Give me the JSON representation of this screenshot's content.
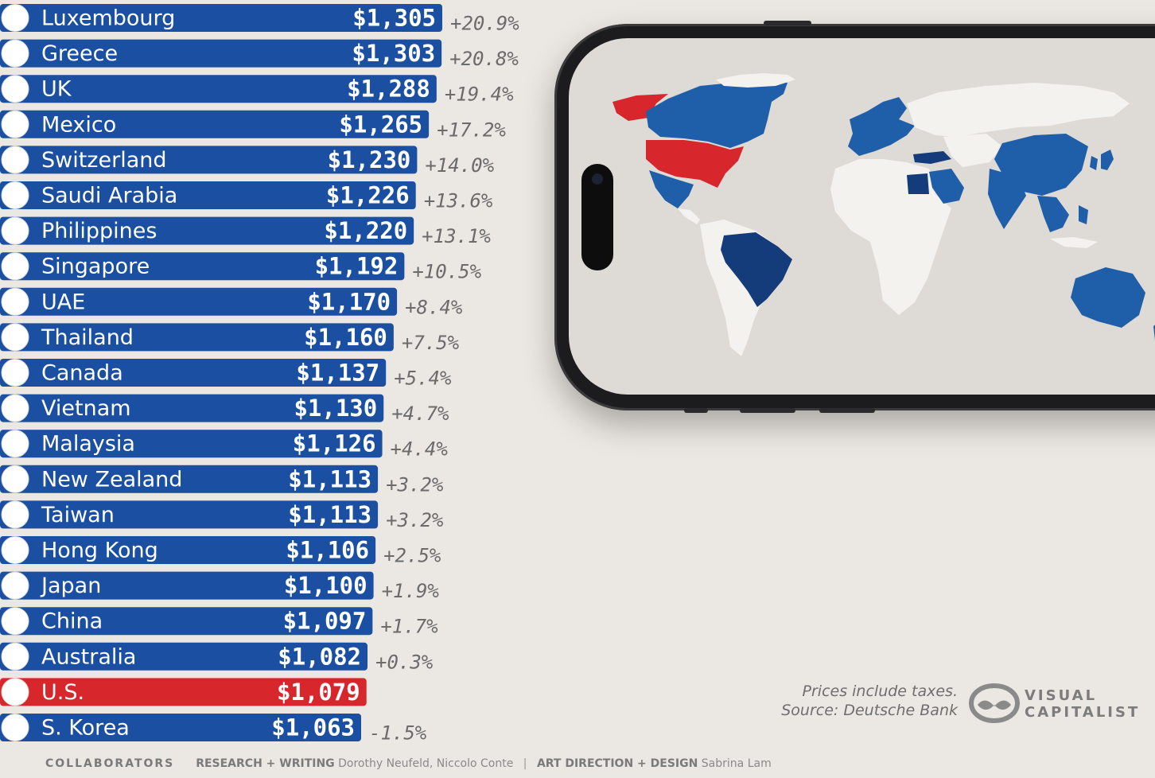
{
  "colors": {
    "bar": "#1a4fa2",
    "us_bar": "#d7262c",
    "background": "#ebe7e2",
    "map_land": "#f4f2ef",
    "map_blue": "#1f5ea8",
    "map_dark": "#143c7a",
    "map_red": "#d7262c"
  },
  "chart_data": {
    "type": "bar",
    "orientation": "horizontal",
    "unit": "USD",
    "categories": [
      "Luxembourg",
      "Greece",
      "UK",
      "Mexico",
      "Switzerland",
      "Saudi Arabia",
      "Philippines",
      "Singapore",
      "UAE",
      "Thailand",
      "Canada",
      "Vietnam",
      "Malaysia",
      "New Zealand",
      "Taiwan",
      "Hong Kong",
      "Japan",
      "China",
      "Australia",
      "U.S.",
      "S. Korea"
    ],
    "price_labels": [
      "$1,305",
      "$1,303",
      "$1,288",
      "$1,265",
      "$1,230",
      "$1,226",
      "$1,220",
      "$1,192",
      "$1,170",
      "$1,160",
      "$1,137",
      "$1,130",
      "$1,126",
      "$1,113",
      "$1,113",
      "$1,106",
      "$1,100",
      "$1,097",
      "$1,082",
      "$1,079",
      "$1,063"
    ],
    "values": [
      1305,
      1303,
      1288,
      1265,
      1230,
      1226,
      1220,
      1192,
      1170,
      1160,
      1137,
      1130,
      1126,
      1113,
      1113,
      1106,
      1100,
      1097,
      1082,
      1079,
      1063
    ],
    "change_labels": [
      "+20.9%",
      "+20.8%",
      "+19.4%",
      "+17.2%",
      "+14.0%",
      "+13.6%",
      "+13.1%",
      "+10.5%",
      "+8.4%",
      "+7.5%",
      "+5.4%",
      "+4.7%",
      "+4.4%",
      "+3.2%",
      "+3.2%",
      "+2.5%",
      "+1.9%",
      "+1.7%",
      "+0.3%",
      "",
      "-1.5%"
    ],
    "flags": [
      "flag-luxembourg",
      "flag-greece",
      "flag-uk",
      "flag-mexico",
      "flag-switzerland",
      "flag-saudi-arabia",
      "flag-philippines",
      "flag-singapore",
      "flag-uae",
      "flag-thailand",
      "flag-canada",
      "flag-vietnam",
      "flag-malaysia",
      "flag-new-zealand",
      "flag-taiwan",
      "flag-hong-kong",
      "flag-japan",
      "flag-china",
      "flag-australia",
      "flag-us",
      "flag-south-korea"
    ],
    "highlight": "U.S.",
    "xlim": [
      0,
      1305
    ]
  },
  "map": {
    "red_regions": [
      "United States",
      "Greenland"
    ],
    "dark_regions": [
      "Brazil",
      "Turkey",
      "Egypt"
    ]
  },
  "source": {
    "line1": "Prices include taxes.",
    "line2": "Source: Deutsche Bank"
  },
  "logo": {
    "line1": "VISUAL",
    "line2": "CAPITALIST"
  },
  "footer": {
    "collaborators": "COLLABORATORS",
    "research_role": "RESEARCH + WRITING",
    "research_names": "Dorothy Neufeld, Niccolo Conte",
    "design_role": "ART DIRECTION + DESIGN",
    "design_names": "Sabrina Lam",
    "separator": "|"
  }
}
